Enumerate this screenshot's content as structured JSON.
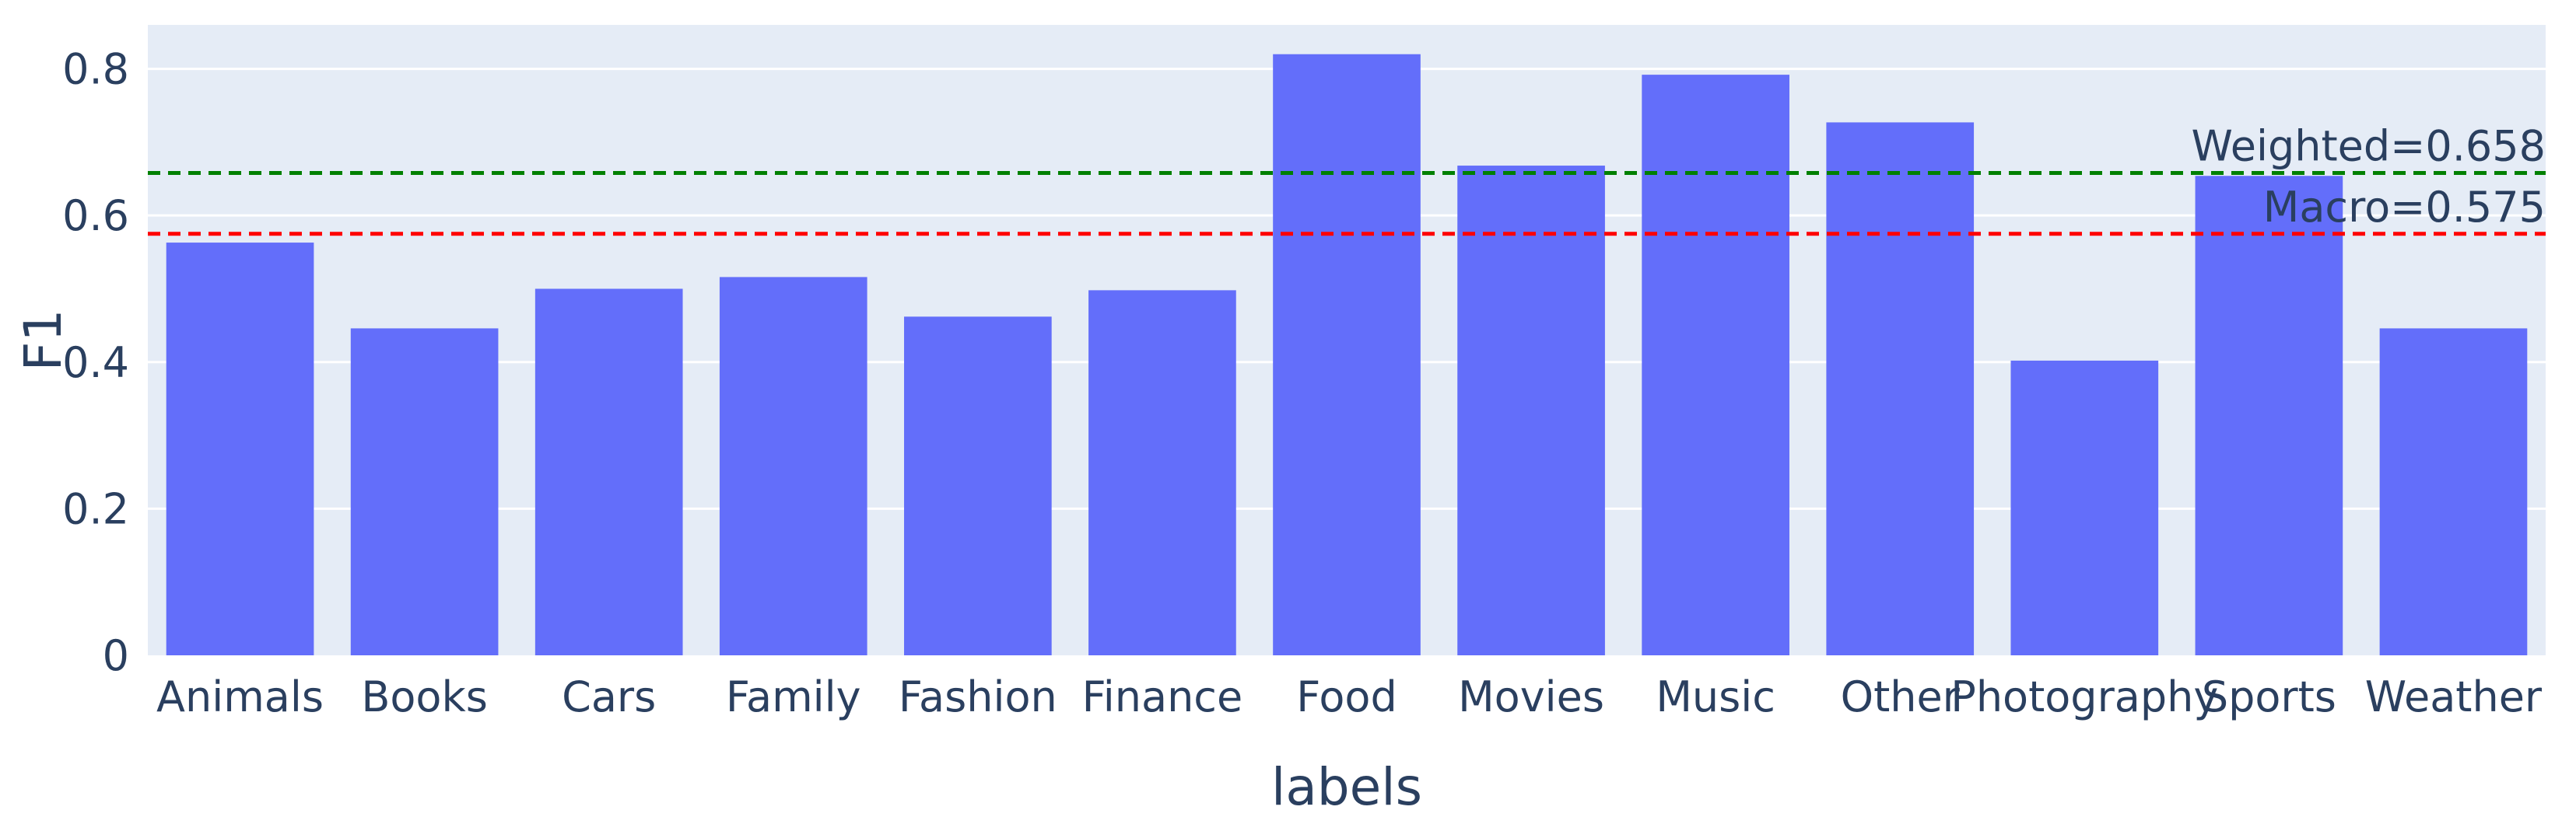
{
  "chart_data": {
    "type": "bar",
    "xlabel": "labels",
    "ylabel": "F1",
    "ylim": [
      0,
      0.86
    ],
    "yticks": [
      0,
      0.2,
      0.4,
      0.6,
      0.8
    ],
    "ytick_labels": [
      "0",
      "0.2",
      "0.4",
      "0.6",
      "0.8"
    ],
    "grid": true,
    "categories": [
      "Animals",
      "Books",
      "Cars",
      "Family",
      "Fashion",
      "Finance",
      "Food",
      "Movies",
      "Music",
      "Other",
      "Photography",
      "Sports",
      "Weather"
    ],
    "values": [
      0.563,
      0.446,
      0.5,
      0.516,
      0.462,
      0.498,
      0.82,
      0.668,
      0.792,
      0.727,
      0.402,
      0.654,
      0.446
    ],
    "bar_color": "#636efa",
    "plot_background": "#e5ecf6",
    "reference_lines": [
      {
        "label": "Weighted=0.658",
        "value": 0.658,
        "color": "#008000",
        "style": "dashed"
      },
      {
        "label": "Macro=0.575",
        "value": 0.575,
        "color": "#ff0000",
        "style": "dashed"
      }
    ]
  }
}
